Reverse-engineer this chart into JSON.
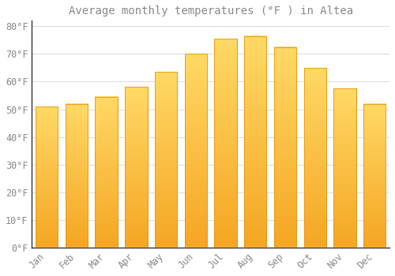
{
  "title": "Average monthly temperatures (°F ) in Altea",
  "months": [
    "Jan",
    "Feb",
    "Mar",
    "Apr",
    "May",
    "Jun",
    "Jul",
    "Aug",
    "Sep",
    "Oct",
    "Nov",
    "Dec"
  ],
  "values": [
    51,
    52,
    54.5,
    58,
    63.5,
    70,
    75.5,
    76.5,
    72.5,
    65,
    57.5,
    52
  ],
  "bar_color_bottom": "#F5A623",
  "bar_color_top": "#FFD966",
  "bar_edge_color": "#E8960A",
  "background_color": "#ffffff",
  "grid_color": "#dddddd",
  "text_color": "#888888",
  "spine_color": "#333333",
  "ylim": [
    0,
    82
  ],
  "yticks": [
    0,
    10,
    20,
    30,
    40,
    50,
    60,
    70,
    80
  ],
  "title_fontsize": 10,
  "tick_fontsize": 8.5
}
